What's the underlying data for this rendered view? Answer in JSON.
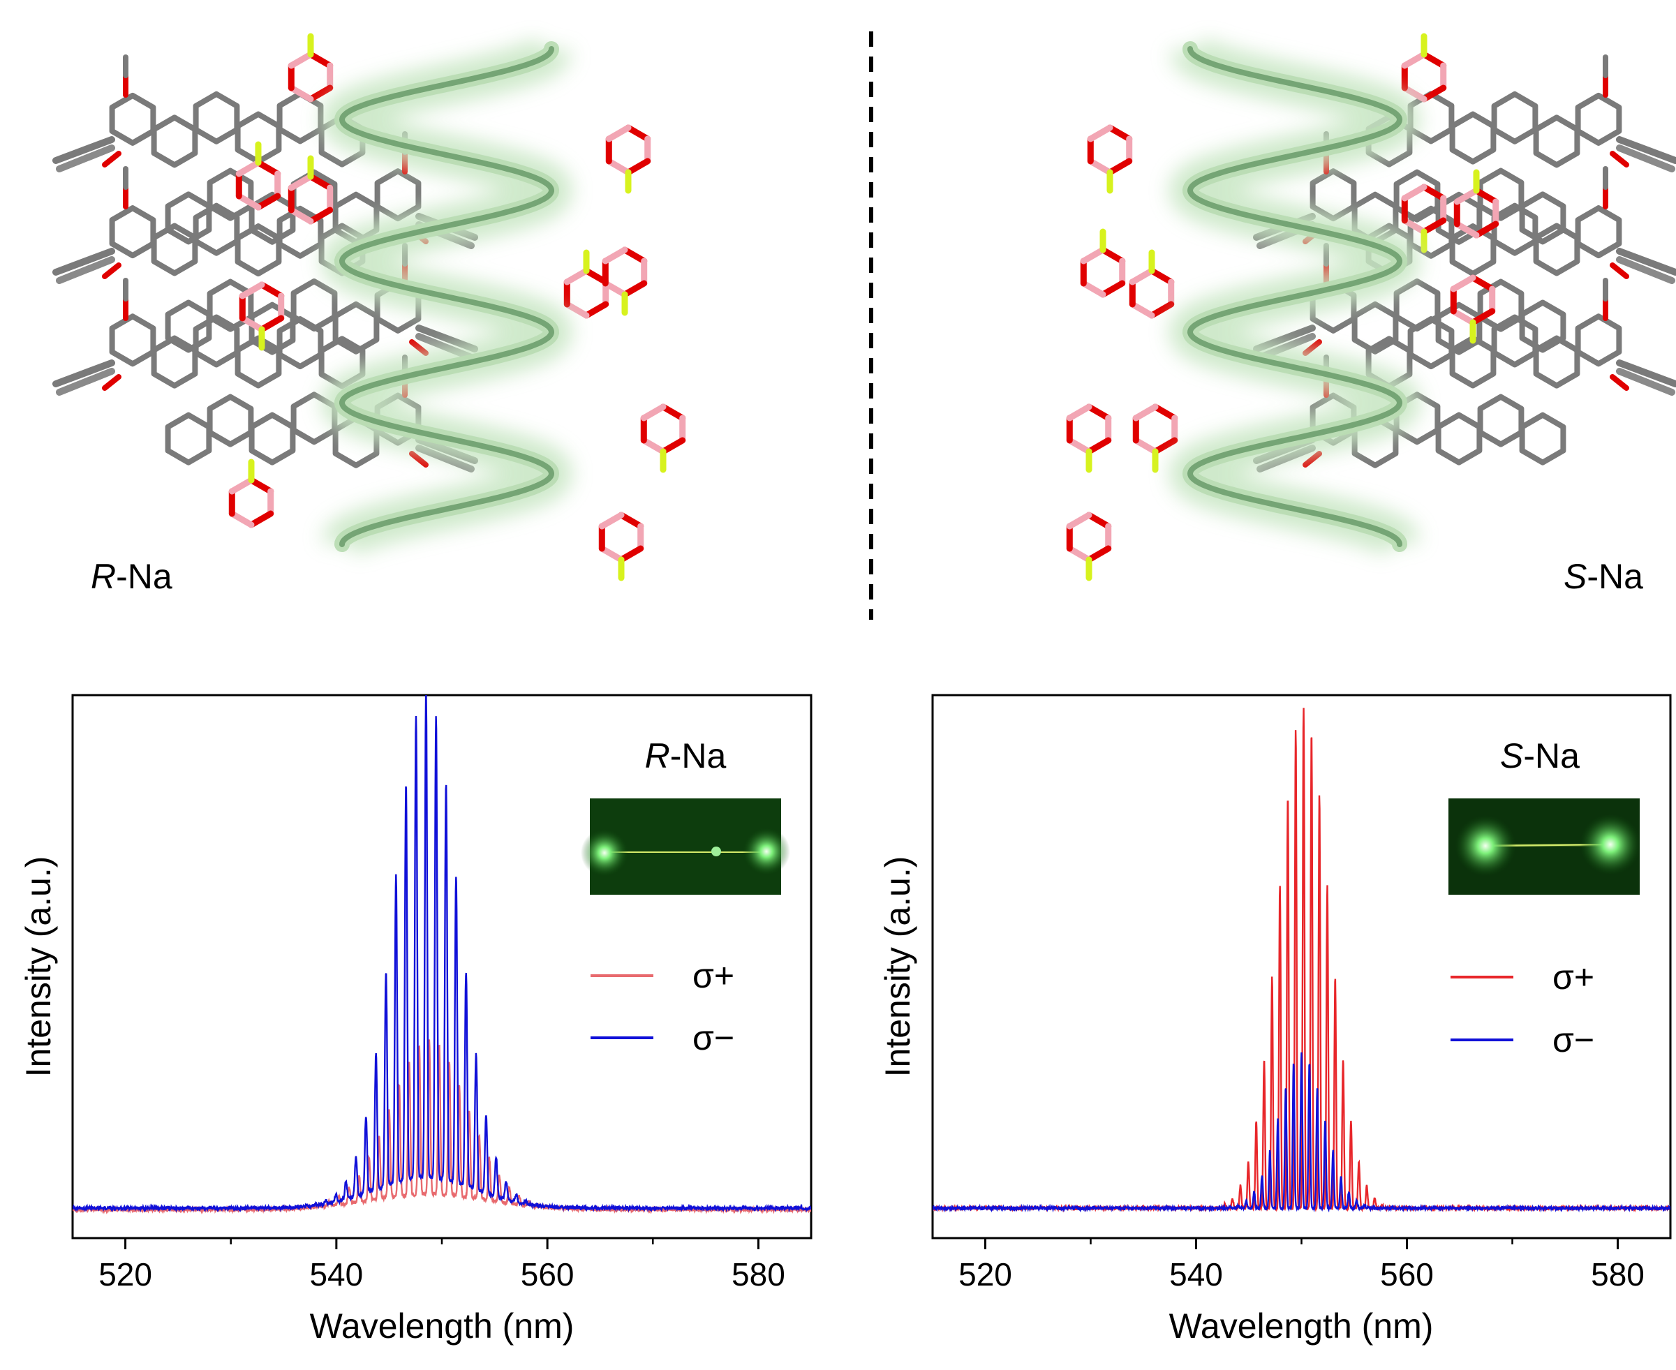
{
  "structures": {
    "left_label_italic": "R",
    "left_label_rest": "-Na",
    "right_label_italic": "S",
    "right_label_rest": "-Na"
  },
  "colors": {
    "sigma_plus": "#e8262a",
    "sigma_plus_light": "#e86a6e",
    "sigma_minus": "#1010d8",
    "helix": "#6e9f6e",
    "helix_glow": "#c7e6c3",
    "bond": "#7a7a7a",
    "oxygen": "#e00000",
    "boron": "#f2a6b4",
    "fluorine": "#d7f21e"
  },
  "chart_data": [
    {
      "type": "line",
      "panel": "left",
      "title_italic": "R",
      "title_rest": "-Na",
      "xlabel": "Wavelength (nm)",
      "ylabel": "Intensity (a.u.)",
      "xlim": [
        515,
        585
      ],
      "ylim": [
        0,
        1.05
      ],
      "xticks": [
        520,
        540,
        560,
        580
      ],
      "xticks_minor": [
        530,
        550,
        570
      ],
      "yticks_shown": false,
      "legend_position": "right",
      "series": [
        {
          "name": "σ+",
          "color": "#e86a6e",
          "baseline": 0.055,
          "center": 548.8,
          "width": 5.0,
          "env_amp": 0.3,
          "bg_amp": 0.03,
          "spacing": 0.95,
          "noise": 0.006
        },
        {
          "name": "σ−",
          "color": "#1010d8",
          "baseline": 0.058,
          "center": 548.5,
          "width": 4.2,
          "env_amp": 0.94,
          "bg_amp": 0.06,
          "spacing": 0.95,
          "noise": 0.006
        }
      ],
      "inset": {
        "kind": "microscopy",
        "description_name": "green-waveguide-image"
      }
    },
    {
      "type": "line",
      "panel": "right",
      "title_italic": "S",
      "title_rest": "-Na",
      "xlabel": "Wavelength (nm)",
      "ylabel": "Intensity (a.u.)",
      "xlim": [
        515,
        585
      ],
      "ylim": [
        0,
        1.05
      ],
      "xticks": [
        520,
        540,
        560,
        580
      ],
      "xticks_minor": [
        530,
        550,
        570
      ],
      "yticks_shown": false,
      "legend_position": "right",
      "series": [
        {
          "name": "σ+",
          "color": "#e8262a",
          "baseline": 0.058,
          "center": 550.2,
          "width": 3.4,
          "env_amp": 0.97,
          "bg_amp": 0.0,
          "spacing": 0.75,
          "noise": 0.005
        },
        {
          "name": "σ−",
          "color": "#1010d8",
          "baseline": 0.058,
          "center": 550.0,
          "width": 3.0,
          "env_amp": 0.3,
          "bg_amp": 0.0,
          "spacing": 0.75,
          "noise": 0.005
        }
      ],
      "inset": {
        "kind": "microscopy",
        "description_name": "green-waveguide-image"
      }
    }
  ]
}
